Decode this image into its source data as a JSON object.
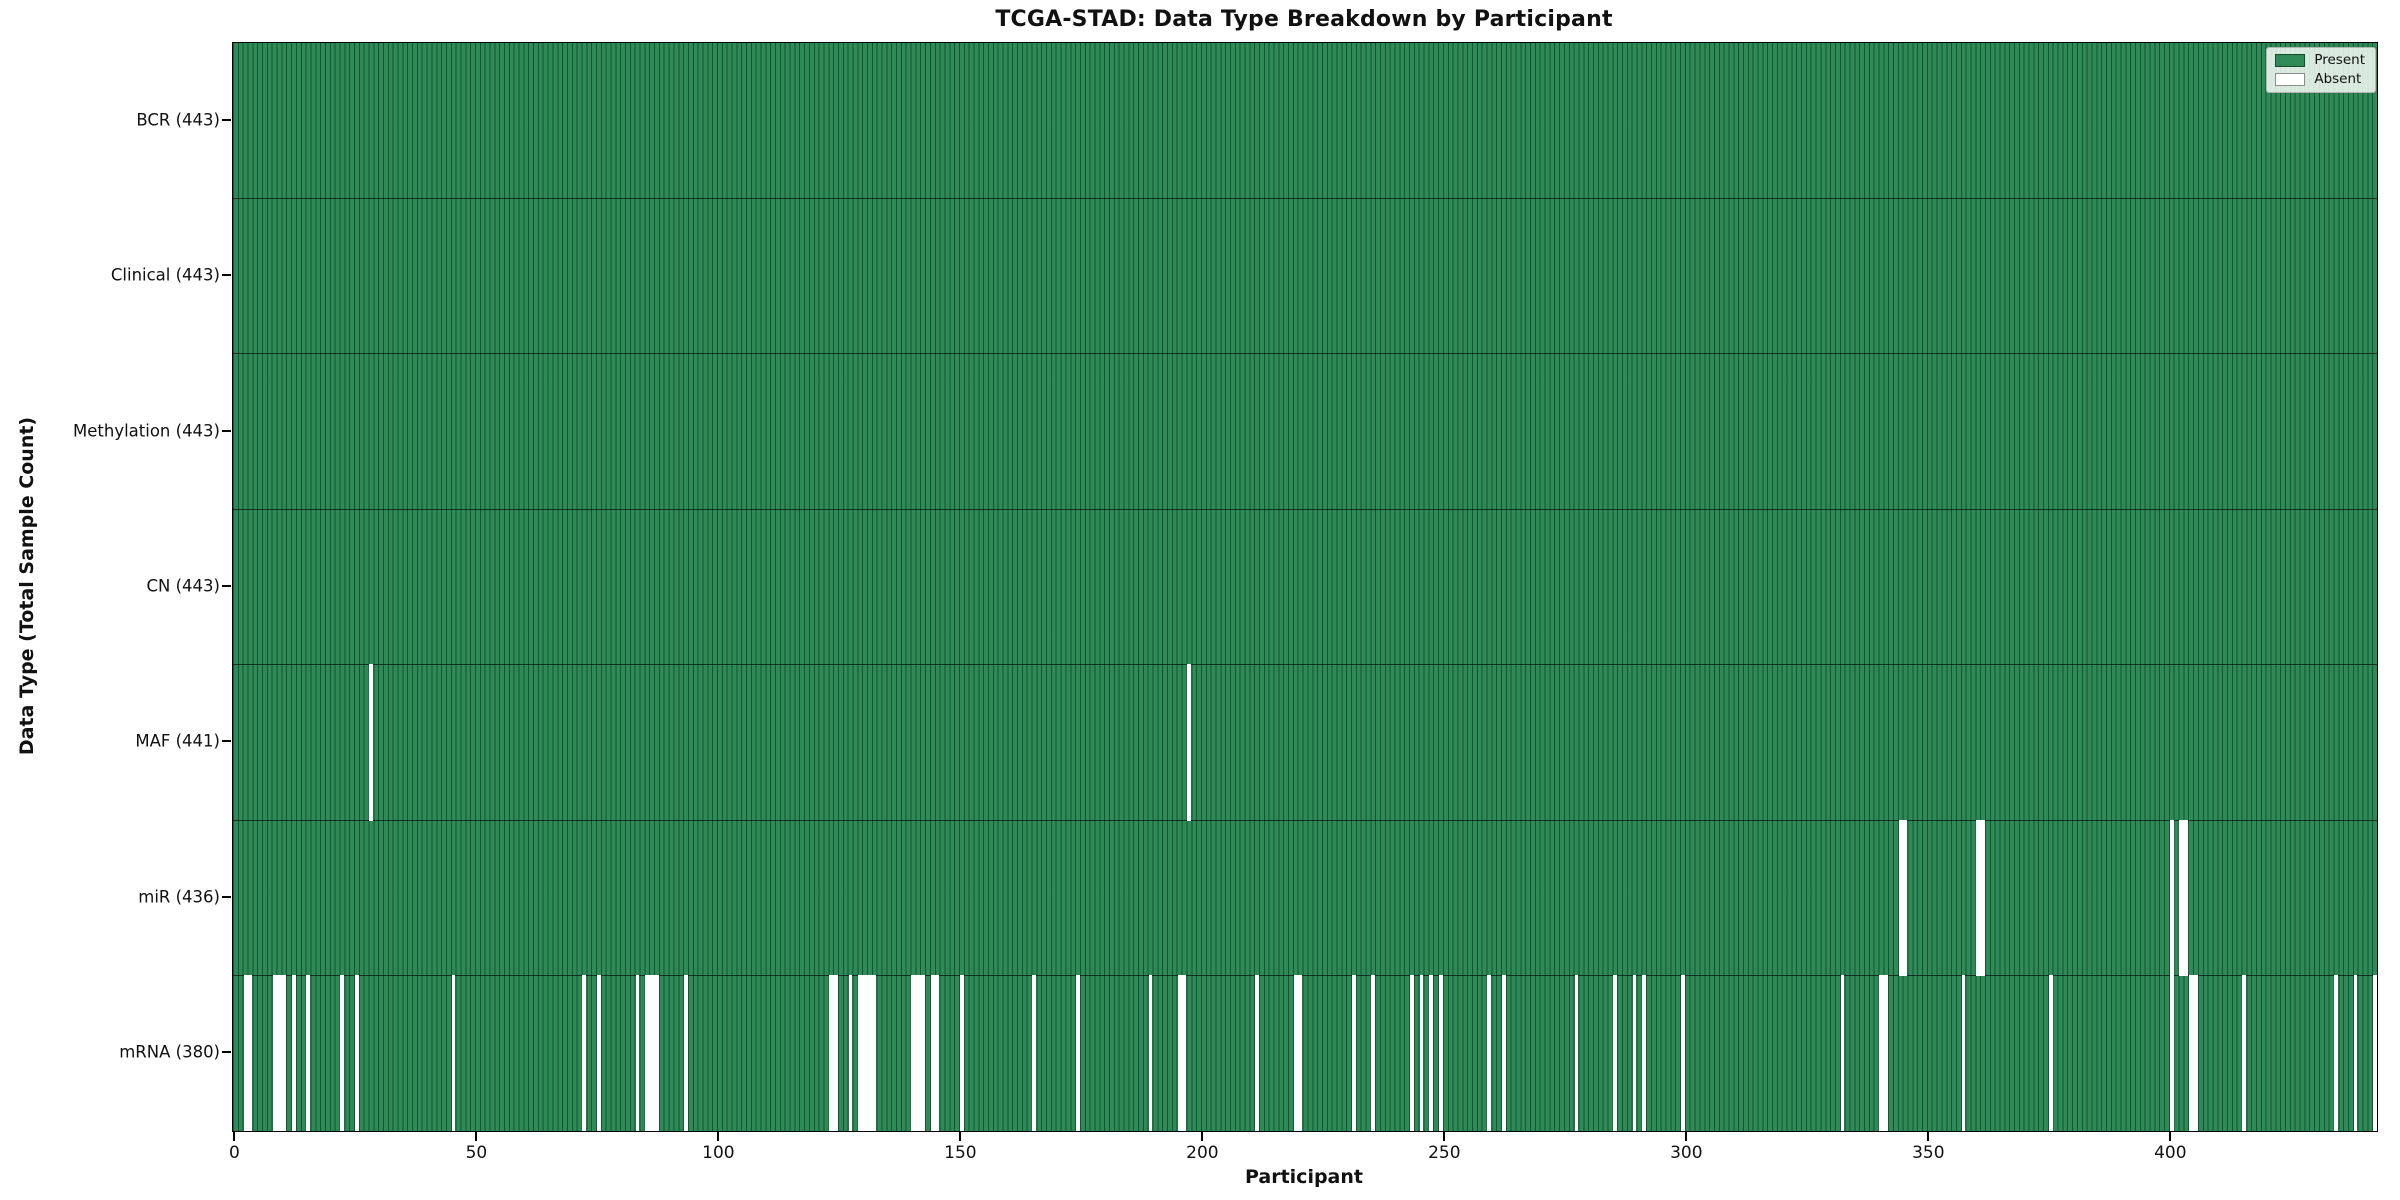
{
  "figure": {
    "background": "#ffffff"
  },
  "chart_data": {
    "type": "heatmap",
    "title": "TCGA-STAD: Data Type Breakdown by Participant",
    "xlabel": "Participant",
    "ylabel": "Data Type (Total Sample Count)",
    "x_ticks": [
      0,
      50,
      100,
      150,
      200,
      250,
      300,
      350,
      400
    ],
    "x_range": [
      -0.5,
      442.5
    ],
    "n_participants": 443,
    "grid": false,
    "legend_position": "upper right",
    "legend": [
      {
        "label": "Present",
        "color": "#2e8b57"
      },
      {
        "label": "Absent",
        "color": "#ffffff"
      }
    ],
    "colors": {
      "present": "#2e8b57",
      "absent": "#ffffff",
      "bar_edge": "#0b2d1b",
      "row_divider": "#1a1a1a",
      "plot_border": "#000000"
    },
    "rows": [
      {
        "label": "BCR",
        "present_count": 443,
        "display": "BCR (443)",
        "absent": []
      },
      {
        "label": "Clinical",
        "present_count": 443,
        "display": "Clinical (443)",
        "absent": []
      },
      {
        "label": "Methylation",
        "present_count": 443,
        "display": "Methylation (443)",
        "absent": []
      },
      {
        "label": "CN",
        "present_count": 443,
        "display": "CN (443)",
        "absent": []
      },
      {
        "label": "MAF",
        "present_count": 441,
        "display": "MAF (441)",
        "absent": [
          28,
          197
        ]
      },
      {
        "label": "miR",
        "present_count": 436,
        "display": "miR (436)",
        "absent": [
          344,
          345,
          360,
          361,
          400,
          402,
          403
        ]
      },
      {
        "label": "mRNA",
        "present_count": 380,
        "display": "mRNA (380)",
        "absent": [
          2,
          3,
          8,
          9,
          10,
          12,
          15,
          22,
          25,
          45,
          72,
          75,
          83,
          85,
          86,
          87,
          93,
          123,
          124,
          127,
          129,
          130,
          131,
          132,
          140,
          141,
          142,
          144,
          145,
          150,
          165,
          174,
          189,
          195,
          196,
          211,
          219,
          220,
          231,
          235,
          243,
          245,
          247,
          249,
          259,
          262,
          277,
          285,
          289,
          291,
          299,
          332,
          340,
          341,
          357,
          375,
          400,
          404,
          405,
          415,
          434,
          438,
          442
        ]
      }
    ]
  }
}
